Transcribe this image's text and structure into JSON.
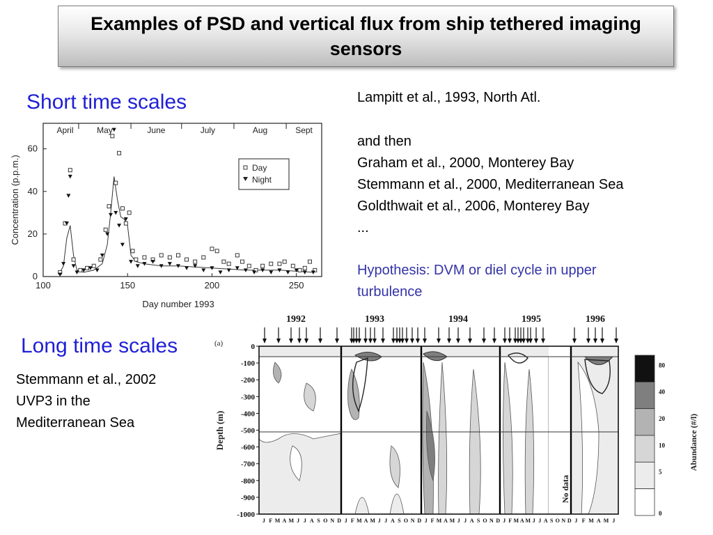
{
  "title": "Examples of PSD and vertical flux from ship tethered imaging sensors",
  "short_heading": "Short time scales",
  "long_heading": "Long time scales",
  "refs": {
    "lampitt": "Lampitt et al., 1993, North Atl.",
    "and_then": "and then",
    "graham": "Graham et al., 2000, Monterey Bay",
    "stemmann2000": "Stemmann et al., 2000, Mediterranean Sea",
    "goldthwait": "Goldthwait et al., 2006, Monterey Bay",
    "ellipsis": "...",
    "hypothesis_line1": "Hypothesis: DVM or diel cycle in upper",
    "hypothesis_line2": "turbulence"
  },
  "long_refs": {
    "line1": "Stemmann et al., 2002",
    "line2": "UVP3 in the",
    "line3": "Mediterranean Sea"
  },
  "chart_data": [
    {
      "type": "scatter",
      "xlabel": "Day number 1993",
      "ylabel": "Concentration (p.p.m.)",
      "xlim": [
        100,
        265
      ],
      "ylim": [
        0,
        72
      ],
      "xticks": [
        100,
        150,
        200,
        250
      ],
      "yticks": [
        0,
        20,
        40,
        60
      ],
      "month_labels": [
        "April",
        "May",
        "June",
        "July",
        "Aug",
        "Sept"
      ],
      "month_boundaries": [
        121,
        152,
        182,
        213,
        244
      ],
      "legend": [
        "Day",
        "Night"
      ],
      "series": [
        {
          "name": "Day",
          "marker": "open-square",
          "points": [
            [
              110,
              2
            ],
            [
              113,
              25
            ],
            [
              116,
              50
            ],
            [
              118,
              8
            ],
            [
              122,
              3
            ],
            [
              126,
              4
            ],
            [
              130,
              5
            ],
            [
              134,
              8
            ],
            [
              137,
              22
            ],
            [
              139,
              33
            ],
            [
              141,
              66
            ],
            [
              143,
              44
            ],
            [
              145,
              58
            ],
            [
              147,
              32
            ],
            [
              149,
              25
            ],
            [
              151,
              30
            ],
            [
              153,
              12
            ],
            [
              155,
              8
            ],
            [
              160,
              9
            ],
            [
              165,
              8
            ],
            [
              170,
              10
            ],
            [
              175,
              9
            ],
            [
              180,
              10
            ],
            [
              185,
              8
            ],
            [
              190,
              7
            ],
            [
              195,
              9
            ],
            [
              200,
              13
            ],
            [
              203,
              12
            ],
            [
              207,
              7
            ],
            [
              210,
              6
            ],
            [
              215,
              10
            ],
            [
              218,
              7
            ],
            [
              222,
              5
            ],
            [
              226,
              3
            ],
            [
              230,
              5
            ],
            [
              235,
              6
            ],
            [
              240,
              6
            ],
            [
              243,
              7
            ],
            [
              248,
              5
            ],
            [
              252,
              3
            ],
            [
              255,
              4
            ],
            [
              258,
              7
            ],
            [
              261,
              3
            ]
          ]
        },
        {
          "name": "Night",
          "marker": "filled-triangle",
          "points": [
            [
              110,
              1
            ],
            [
              112,
              6
            ],
            [
              114,
              25
            ],
            [
              115,
              38
            ],
            [
              116,
              47
            ],
            [
              118,
              5
            ],
            [
              120,
              2
            ],
            [
              124,
              3
            ],
            [
              128,
              4
            ],
            [
              132,
              3
            ],
            [
              135,
              10
            ],
            [
              138,
              20
            ],
            [
              140,
              29
            ],
            [
              142,
              69
            ],
            [
              143,
              30
            ],
            [
              145,
              24
            ],
            [
              147,
              15
            ],
            [
              149,
              27
            ],
            [
              152,
              7
            ],
            [
              156,
              5
            ],
            [
              160,
              6
            ],
            [
              165,
              7
            ],
            [
              170,
              5
            ],
            [
              175,
              6
            ],
            [
              180,
              5
            ],
            [
              185,
              4
            ],
            [
              190,
              5
            ],
            [
              195,
              3
            ],
            [
              200,
              4
            ],
            [
              205,
              2
            ],
            [
              210,
              3
            ],
            [
              215,
              4
            ],
            [
              220,
              3
            ],
            [
              225,
              2
            ],
            [
              230,
              3
            ],
            [
              235,
              2
            ],
            [
              240,
              3
            ],
            [
              245,
              2
            ],
            [
              250,
              3
            ],
            [
              255,
              2
            ],
            [
              260,
              2
            ]
          ]
        }
      ],
      "fit_line": {
        "x": [
          110,
          112,
          114,
          116,
          118,
          120,
          124,
          130,
          135,
          138,
          140,
          142,
          144,
          146,
          148,
          150,
          152,
          155,
          160,
          170,
          180,
          200,
          220,
          240,
          260
        ],
        "y": [
          2,
          5,
          18,
          24,
          10,
          3,
          2,
          3,
          6,
          15,
          30,
          47,
          36,
          28,
          27,
          24,
          10,
          7,
          6,
          5,
          5,
          4,
          3,
          3,
          2
        ]
      }
    },
    {
      "type": "heatmap",
      "panel_label": "(a)",
      "ylabel": "Depth (m)",
      "ytick_labels": [
        "0",
        "-100",
        "-200",
        "-300",
        "-400",
        "-500",
        "-600",
        "-700",
        "-800",
        "-900",
        "-1000"
      ],
      "years": [
        "1992",
        "1993",
        "1994",
        "1995",
        "1996"
      ],
      "month_ticks": "JFMAMJJASOND",
      "no_data_label": "No data",
      "colorbar_label": "Abundance (#/l)",
      "colorbar_levels": [
        "80",
        "40",
        "20",
        "10",
        "5",
        "0"
      ],
      "colorbar_colors": [
        "#111111",
        "#7f7f7f",
        "#b3b3b3",
        "#d6d6d6",
        "#ececec",
        "#ffffff"
      ]
    }
  ]
}
